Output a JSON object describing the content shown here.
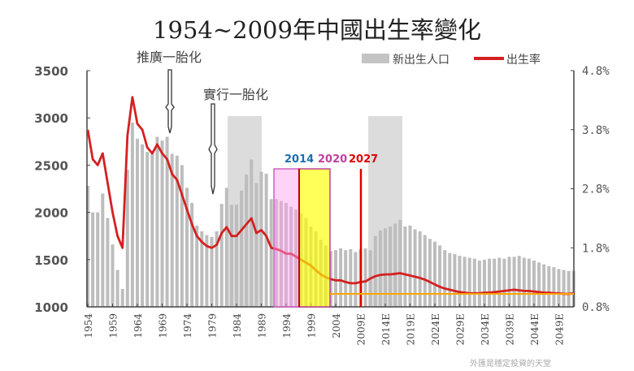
{
  "chart_data": {
    "type": "bar+line",
    "title": "1954~2009年中國出生率變化",
    "legend": {
      "position": "top-right",
      "entries": [
        "新出生人口",
        "出生率"
      ]
    },
    "left_axis": {
      "ylim": [
        1000,
        3500
      ],
      "ticks": [
        "1000",
        "1500",
        "2000",
        "2500",
        "3000",
        "3500"
      ]
    },
    "right_axis": {
      "ylim": [
        0.8,
        4.8
      ],
      "ticks": [
        "0.8%",
        "1.8%",
        "2.8%",
        "3.8%",
        "4.8%"
      ]
    },
    "x_ticks": [
      "1954",
      "1959",
      "1964",
      "1969",
      "1974",
      "1979",
      "1984",
      "1989",
      "1994",
      "1999",
      "2004",
      "2009E",
      "2014E",
      "2019E",
      "2024E",
      "2029E",
      "2034E",
      "2039E",
      "2044E",
      "2049E"
    ],
    "start_year": 1954,
    "series": [
      {
        "name": "新出生人口",
        "type": "bar",
        "color": "#b8b8b8",
        "values": [
          2280,
          2000,
          2000,
          2200,
          1940,
          1660,
          1390,
          1190,
          2450,
          2950,
          2780,
          2720,
          2640,
          2620,
          2800,
          2760,
          2800,
          2620,
          2600,
          2500,
          2260,
          2100,
          1860,
          1800,
          1760,
          1740,
          1800,
          2090,
          2260,
          2080,
          2080,
          2230,
          2400,
          2560,
          2310,
          2430,
          2410,
          2140,
          2140,
          2120,
          2100,
          2060,
          2030,
          1990,
          1940,
          1850,
          1800,
          1710,
          1650,
          1590,
          1600,
          1620,
          1600,
          1610,
          1580,
          1610,
          1620,
          1600,
          1750,
          1810,
          1830,
          1850,
          1880,
          1920,
          1850,
          1860,
          1820,
          1800,
          1760,
          1720,
          1690,
          1650,
          1600,
          1570,
          1560,
          1540,
          1530,
          1520,
          1510,
          1490,
          1500,
          1510,
          1510,
          1520,
          1510,
          1530,
          1530,
          1540,
          1520,
          1510,
          1490,
          1470,
          1450,
          1430,
          1420,
          1400,
          1390,
          1380,
          1380
        ]
      },
      {
        "name": "出生率",
        "type": "line",
        "color": "#d42020",
        "unit": "%",
        "values": [
          3.8,
          3.3,
          3.2,
          3.4,
          2.9,
          2.4,
          2.0,
          1.8,
          3.7,
          4.35,
          3.9,
          3.8,
          3.5,
          3.4,
          3.55,
          3.4,
          3.3,
          3.05,
          2.95,
          2.7,
          2.45,
          2.2,
          2.0,
          1.9,
          1.83,
          1.8,
          1.85,
          2.05,
          2.15,
          2.0,
          2.0,
          2.1,
          2.2,
          2.3,
          2.05,
          2.1,
          2.0,
          1.8,
          1.78,
          1.75,
          1.7,
          1.7,
          1.65,
          1.6,
          1.55,
          1.5,
          1.42,
          1.35,
          1.3,
          1.27,
          1.25,
          1.25,
          1.22,
          1.2,
          1.2,
          1.22,
          1.23,
          1.28,
          1.32,
          1.34,
          1.35,
          1.35,
          1.36,
          1.37,
          1.35,
          1.33,
          1.31,
          1.29,
          1.26,
          1.22,
          1.18,
          1.14,
          1.11,
          1.09,
          1.07,
          1.05,
          1.04,
          1.03,
          1.03,
          1.03,
          1.04,
          1.04,
          1.05,
          1.06,
          1.07,
          1.08,
          1.09,
          1.08,
          1.07,
          1.07,
          1.06,
          1.05,
          1.04,
          1.04,
          1.03,
          1.03,
          1.02,
          1.02,
          1.03
        ]
      }
    ],
    "annotations": {
      "policy_promote": "推廣一胎化",
      "policy_enforce": "實行一胎化",
      "label_2014": "2014",
      "label_2020": "2020",
      "label_2027": "2027",
      "reference_rate": 1.02
    },
    "colors": {
      "pink_box": "#ff9cf0",
      "yellow_box": "#ffff00",
      "marker_2027": "#e00000",
      "blue": "#1a6fb0",
      "purple": "#c040a0",
      "orange_line": "#ffa500"
    }
  },
  "watermark": "外匯是穩定投資的天堂"
}
